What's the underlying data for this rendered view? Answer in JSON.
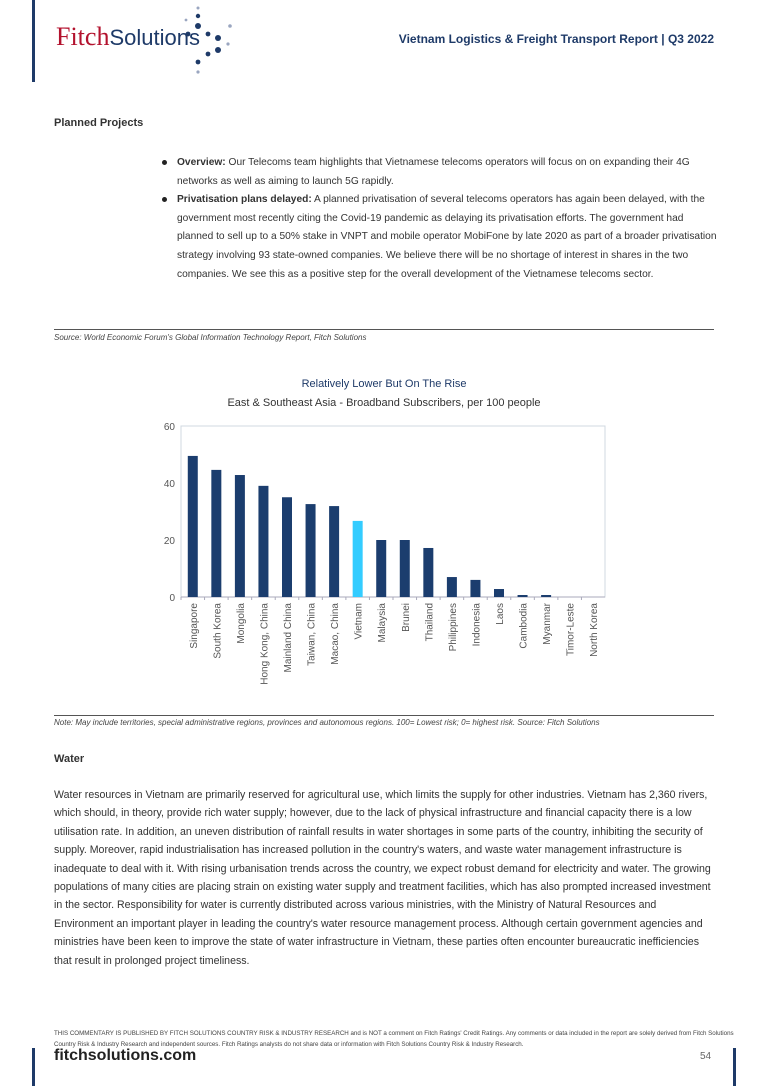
{
  "header": {
    "logo": {
      "fitch": "Fitch",
      "solutions": "Solutions"
    },
    "report_title": "Vietnam Logistics & Freight Transport Report | Q3 2022"
  },
  "planned_projects": {
    "heading": "Planned Projects",
    "bullets": [
      {
        "label": "Overview:",
        "text": " Our Telecoms team highlights that Vietnamese telecoms operators will focus on on expanding their 4G networks as well as aiming to launch 5G rapidly."
      },
      {
        "label": "Privatisation plans delayed:",
        "text": " A planned privatisation of several telecoms operators has again been delayed, with the government most recently citing the Covid-19 pandemic as delaying its privatisation efforts. The government had planned to sell up to a 50% stake in VNPT and mobile operator MobiFone by late 2020 as part of a broader privatisation strategy involving 93 state-owned companies. We believe there will be no shortage of interest in shares in the two companies. We see this as a positive step for the overall development of the Vietnamese telecoms sector."
      }
    ],
    "source": "Source: World Economic Forum's Global Information Technology Report, Fitch Solutions"
  },
  "chart_data": {
    "type": "bar",
    "title": "Relatively Lower But On The Rise",
    "subtitle": "East & Southeast Asia - Broadband Subscribers, per 100 people",
    "categories": [
      "Singapore",
      "South Korea",
      "Mongolia",
      "Hong Kong, China",
      "Mainland China",
      "Taiwan, China",
      "Macao, China",
      "Vietnam",
      "Malaysia",
      "Brunei",
      "Thailand",
      "Philippines",
      "Indonesia",
      "Laos",
      "Cambodia",
      "Myanmar",
      "Timor-Leste",
      "North Korea"
    ],
    "values": [
      49.5,
      44.6,
      42.8,
      39,
      35,
      32.6,
      31.9,
      26.7,
      20,
      20,
      17.2,
      7,
      6,
      2.8,
      0.7,
      0.7,
      0,
      0
    ],
    "highlight": "Vietnam",
    "colors": {
      "default": "#1b3d6e",
      "highlight": "#33ccff"
    },
    "ylim": [
      0,
      60
    ],
    "yticks": [
      0,
      20,
      40,
      60
    ],
    "grid": false,
    "legend": "none"
  },
  "chart_note": "Note: May include territories, special administrative regions, provinces and autonomous regions. 100= Lowest risk; 0= highest risk. Source: Fitch Solutions",
  "water": {
    "heading": "Water",
    "paragraph": "Water resources in Vietnam are primarily reserved for agricultural use, which limits the supply for other industries. Vietnam has 2,360 rivers, which should, in theory, provide rich water supply; however, due to the lack of physical infrastructure and financial capacity there is a low utilisation rate. In addition, an uneven distribution of rainfall results in water shortages in some parts of the country, inhibiting the security of supply. Moreover, rapid industrialisation has increased pollution in the country's waters, and waste water management infrastructure is inadequate to deal with it. With rising urbanisation trends across the country, we expect robust demand for electricity and water. The growing populations of many cities are placing strain on existing water supply and treatment facilities, which has also prompted increased investment in the sector. Responsibility for water is currently distributed across various ministries, with the Ministry of Natural Resources and Environment an important player in leading the country's water resource management process. Although certain government agencies and ministries have been keen to improve the state of water infrastructure in Vietnam, these parties often encounter bureaucratic inefficiencies that result in prolonged project timeliness."
  },
  "footer": {
    "disclaimer": "THIS COMMENTARY IS PUBLISHED BY FITCH SOLUTIONS COUNTRY RISK & INDUSTRY RESEARCH and is NOT a comment on Fitch Ratings' Credit Ratings. Any comments or data included in the report are solely derived from Fitch Solutions Country Risk & Industry Research and independent sources. Fitch Ratings analysts do not share data or information with Fitch Solutions Country Risk & Industry Research.",
    "website": "fitchsolutions.com",
    "page_number": "54"
  }
}
